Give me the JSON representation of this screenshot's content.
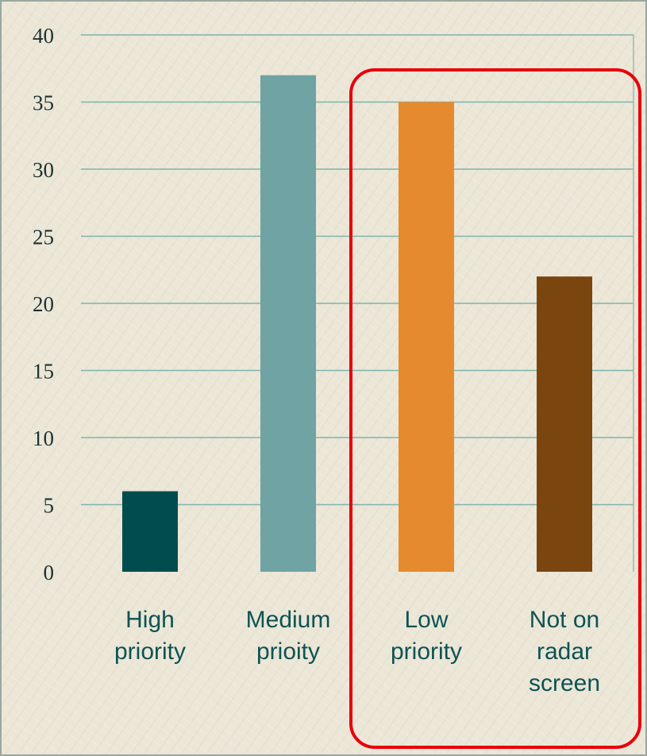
{
  "chart_data": {
    "type": "bar",
    "title": "",
    "xlabel": "",
    "ylabel": "",
    "categories": [
      [
        "High",
        "priority"
      ],
      [
        "Medium",
        "prioity"
      ],
      [
        "Low",
        "priority"
      ],
      [
        "Not on",
        "radar",
        "screen"
      ]
    ],
    "values": [
      6,
      37,
      35,
      22
    ],
    "colors": [
      "#014d4e",
      "#6fa3a4",
      "#e58a2e",
      "#7b4510"
    ],
    "ylim": [
      0,
      40
    ],
    "yticks": [
      0,
      5,
      10,
      15,
      20,
      25,
      30,
      35,
      40
    ],
    "grid": true,
    "gridline_color": "#7fb4b0",
    "highlight": {
      "categories": [
        "Low priority",
        "Not on radar screen"
      ],
      "color": "#e8000b"
    }
  }
}
